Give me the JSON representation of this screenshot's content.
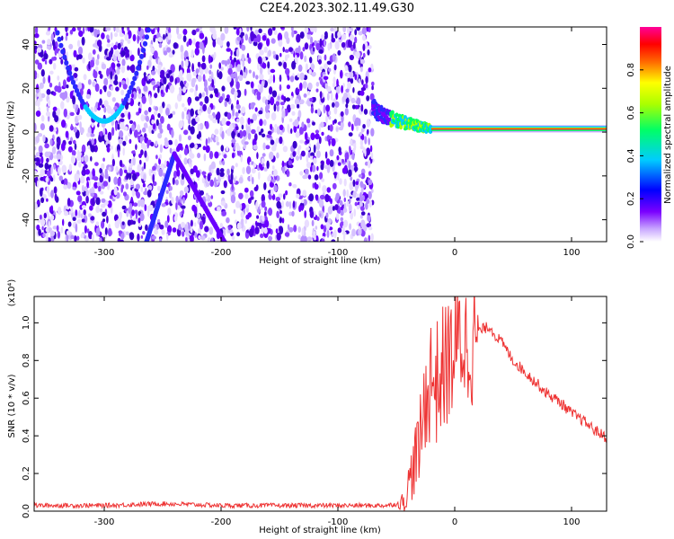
{
  "title": "C2E4.2023.302.11.49.G30",
  "chart_data": [
    {
      "type": "heatmap",
      "xlabel": "Height of straight line (km)",
      "ylabel": "Frequency (Hz)",
      "xlim": [
        -360,
        130
      ],
      "ylim": [
        -50,
        48
      ],
      "xticks": [
        -300,
        -200,
        -100,
        0,
        100
      ],
      "yticks": [
        -40,
        -20,
        0,
        20,
        40
      ],
      "colorbar": {
        "label": "Normalized spectral amplitude",
        "range": [
          0.0,
          1.0
        ],
        "ticks": [
          "0.0",
          "0.2",
          "0.4",
          "0.6",
          "0.8"
        ],
        "colors": [
          "#ffffff",
          "#7a00ff",
          "#0000ff",
          "#00ffff",
          "#00ff00",
          "#ffff00",
          "#ff0000",
          "#ff0099"
        ]
      },
      "features": [
        {
          "description": "broadband noise region",
          "x_range": [
            -360,
            -70
          ],
          "amplitude": 0.1
        },
        {
          "description": "carrier line",
          "x_range": [
            -20,
            130
          ],
          "frequency": 1.5,
          "amplitude": 0.9
        },
        {
          "description": "approaching curve",
          "x_range": [
            -70,
            -20
          ],
          "frequency_start": 12,
          "frequency_end": 1.5
        }
      ]
    },
    {
      "type": "line",
      "xlabel": "Height of straight line (km)",
      "ylabel": "SNR (10 * v/v)",
      "y_multiplier": "(x10⁴)",
      "xlim": [
        -360,
        130
      ],
      "ylim": [
        0.0,
        1.14
      ],
      "xticks": [
        -300,
        -200,
        -100,
        0,
        100
      ],
      "yticks": [
        "0.0",
        "0.2",
        "0.4",
        "0.6",
        "0.8",
        "1.0"
      ],
      "series": [
        {
          "color": "#ee3333",
          "x": [
            -360,
            -300,
            -250,
            -200,
            -150,
            -100,
            -60,
            -45,
            -40,
            -35,
            -30,
            -25,
            -20,
            -15,
            -10,
            -5,
            0,
            5,
            10,
            15,
            20,
            25,
            30,
            35,
            40,
            50,
            60,
            70,
            80,
            90,
            100,
            110,
            120,
            130
          ],
          "y": [
            0.03,
            0.03,
            0.04,
            0.03,
            0.03,
            0.03,
            0.03,
            0.04,
            0.12,
            0.25,
            0.35,
            0.6,
            0.72,
            0.68,
            0.75,
            0.8,
            0.85,
            0.92,
            0.88,
            0.9,
            0.95,
            0.97,
            0.98,
            0.93,
            0.9,
            0.8,
            0.74,
            0.68,
            0.62,
            0.58,
            0.52,
            0.48,
            0.43,
            0.39
          ]
        }
      ]
    }
  ]
}
